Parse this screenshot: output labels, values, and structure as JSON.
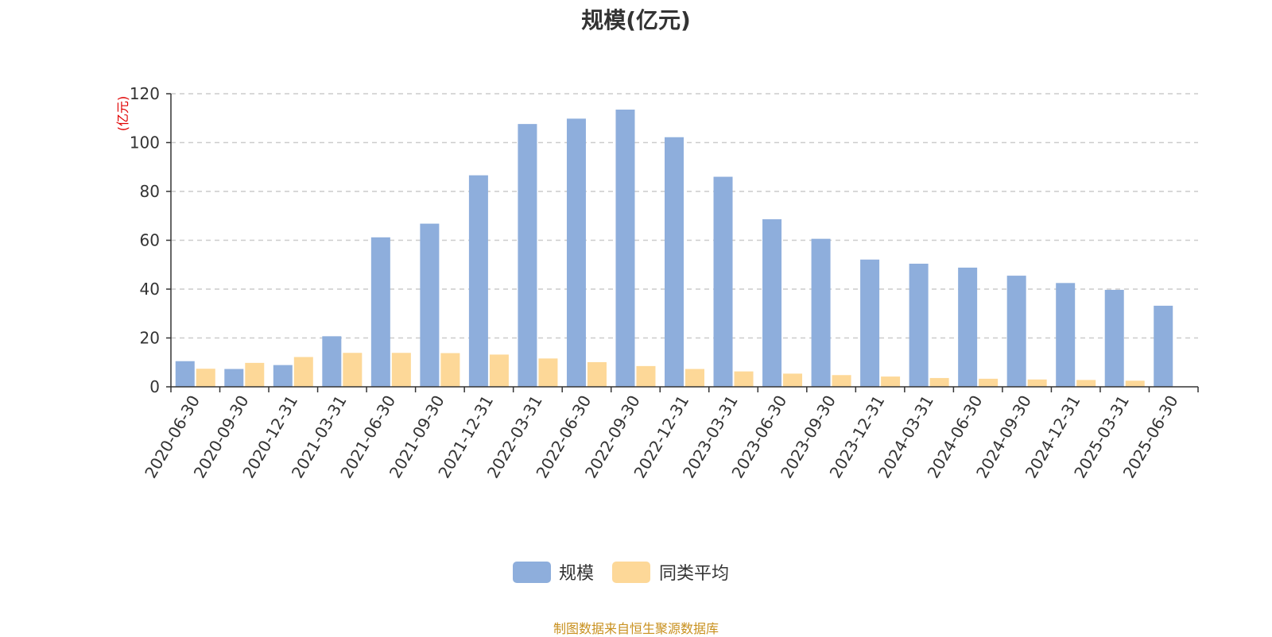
{
  "chart_data": {
    "type": "bar",
    "title": "规模(亿元)",
    "ylabel": "(亿元)",
    "xlabel": "",
    "ylim": [
      0,
      120
    ],
    "yticks": [
      0,
      20,
      40,
      60,
      80,
      100,
      120
    ],
    "grid": true,
    "legend_position": "bottom-center",
    "categories": [
      "2020-06-30",
      "2020-09-30",
      "2020-12-31",
      "2021-03-31",
      "2021-06-30",
      "2021-09-30",
      "2021-12-31",
      "2022-03-31",
      "2022-06-30",
      "2022-09-30",
      "2022-12-31",
      "2023-03-31",
      "2023-06-30",
      "2023-09-30",
      "2023-12-31",
      "2024-03-31",
      "2024-06-30",
      "2024-09-30",
      "2024-12-31",
      "2025-03-31",
      "2025-06-30"
    ],
    "series": [
      {
        "name": "规模",
        "color": "#8eaedc",
        "values": [
          10.5,
          7.3,
          8.9,
          20.7,
          61.2,
          66.8,
          86.6,
          107.6,
          109.8,
          113.5,
          102.2,
          86.0,
          68.6,
          60.6,
          52.1,
          50.4,
          48.8,
          45.5,
          42.5,
          39.7,
          33.2
        ]
      },
      {
        "name": "同类平均",
        "color": "#fdd898",
        "values": [
          7.4,
          9.8,
          12.2,
          13.9,
          13.9,
          13.8,
          13.2,
          11.6,
          10.1,
          8.5,
          7.3,
          6.3,
          5.4,
          4.8,
          4.2,
          3.6,
          3.3,
          3.0,
          2.8,
          2.5,
          null
        ]
      }
    ],
    "source": "制图数据来自恒生聚源数据库"
  }
}
